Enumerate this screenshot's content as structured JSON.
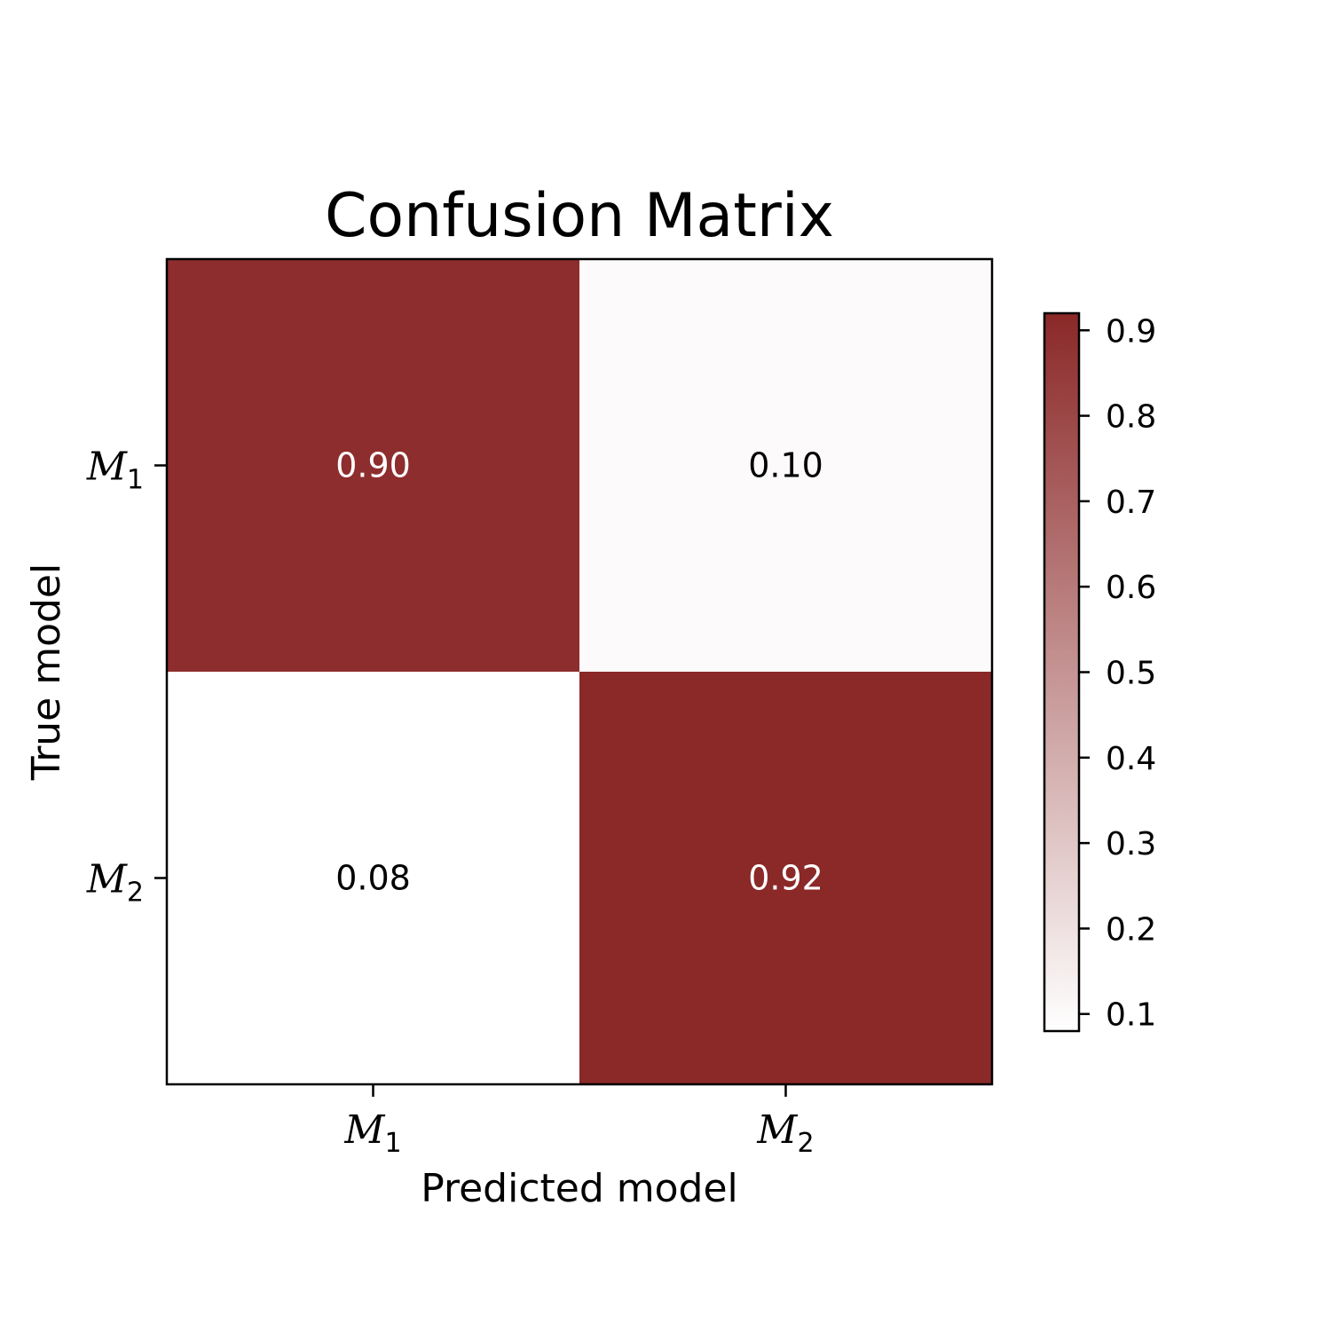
{
  "chart_data": {
    "type": "heatmap",
    "title": "Confusion Matrix",
    "xlabel": "Predicted model",
    "ylabel": "True model",
    "x_categories": [
      {
        "base": "M",
        "sub": "1"
      },
      {
        "base": "M",
        "sub": "2"
      }
    ],
    "y_categories": [
      {
        "base": "M",
        "sub": "1"
      },
      {
        "base": "M",
        "sub": "2"
      }
    ],
    "values": [
      [
        0.9,
        0.1
      ],
      [
        0.08,
        0.92
      ]
    ],
    "cell_labels": [
      [
        "0.90",
        "0.10"
      ],
      [
        "0.08",
        "0.92"
      ]
    ],
    "colorbar": {
      "min": 0.08,
      "max": 0.92,
      "ticks": [
        0.1,
        0.2,
        0.3,
        0.4,
        0.5,
        0.6,
        0.7,
        0.8,
        0.9
      ],
      "tick_labels": [
        "0.1",
        "0.2",
        "0.3",
        "0.4",
        "0.5",
        "0.6",
        "0.7",
        "0.8",
        "0.9"
      ],
      "color_low": "#ffffff",
      "color_high": "#8b2828"
    },
    "text_color_dark": "#ffffff",
    "text_color_light": "#000000"
  }
}
